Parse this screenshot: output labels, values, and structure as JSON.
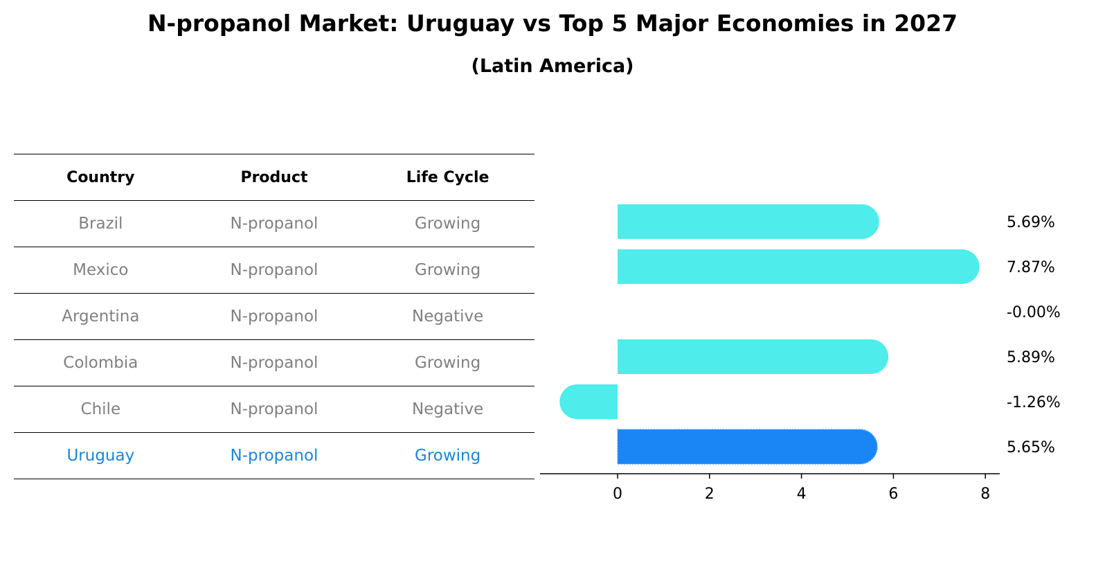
{
  "title": "N-propanol Market: Uruguay vs Top 5 Major Economies in 2027",
  "subtitle": "(Latin America)",
  "table": {
    "headers": [
      "Country",
      "Product",
      "Life Cycle"
    ],
    "rows": [
      [
        "Brazil",
        "N-propanol",
        "Growing"
      ],
      [
        "Mexico",
        "N-propanol",
        "Growing"
      ],
      [
        "Argentina",
        "N-propanol",
        "Negative"
      ],
      [
        "Colombia",
        "N-propanol",
        "Growing"
      ],
      [
        "Chile",
        "N-propanol",
        "Negative"
      ],
      [
        "Uruguay",
        "N-propanol",
        "Growing"
      ]
    ],
    "highlight_row": 5
  },
  "chart_data": {
    "type": "bar",
    "orientation": "horizontal",
    "categories": [
      "Brazil",
      "Mexico",
      "Argentina",
      "Colombia",
      "Chile",
      "Uruguay"
    ],
    "values": [
      5.69,
      7.87,
      -0.0,
      5.89,
      -1.26,
      5.65
    ],
    "value_labels": [
      "5.69%",
      "7.87%",
      "-0.00%",
      "5.89%",
      "-1.26%",
      "5.65%"
    ],
    "highlight_index": 5,
    "xticks": [
      0,
      2,
      4,
      6,
      8
    ],
    "xlim": [
      -1.7,
      8.3
    ],
    "grid": false,
    "colors": {
      "bar": "#4eecea",
      "highlight": "#1a86f5",
      "highlight_text": "#1a86d8",
      "muted_text": "#808080"
    }
  }
}
